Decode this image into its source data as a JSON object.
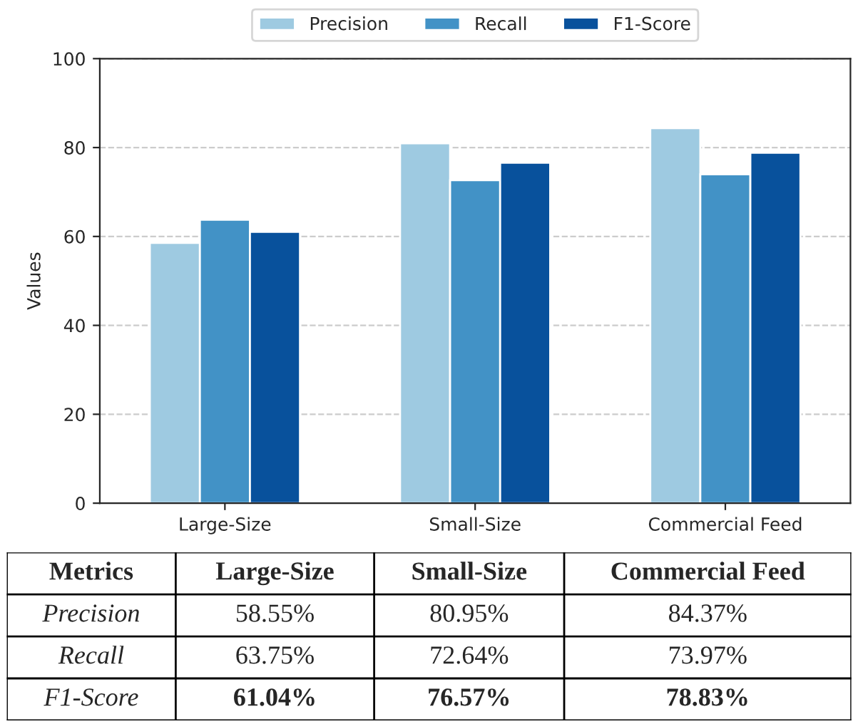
{
  "chart_data": {
    "type": "bar",
    "ylabel": "Values",
    "categories": [
      "Large-Size",
      "Small-Size",
      "Commercial Feed"
    ],
    "series": [
      {
        "name": "Precision",
        "color": "#9ecae1",
        "values": [
          58.55,
          80.95,
          84.37
        ],
        "value_labels": [
          "58.55%",
          "80.95%",
          "84.37%"
        ]
      },
      {
        "name": "Recall",
        "color": "#4292c6",
        "values": [
          63.75,
          72.64,
          73.97
        ],
        "value_labels": [
          "63.75%",
          "72.64%",
          "73.97%"
        ]
      },
      {
        "name": "F1-Score",
        "color": "#08519c",
        "values": [
          61.04,
          76.57,
          78.83
        ],
        "value_labels": [
          "61.04%",
          "76.57%",
          "78.83%"
        ]
      }
    ],
    "ylim": [
      0,
      100
    ],
    "yticks": [
      0,
      20,
      40,
      60,
      80,
      100
    ],
    "grid": "y",
    "legend": "top",
    "annotations": [
      "Metrics"
    ]
  }
}
